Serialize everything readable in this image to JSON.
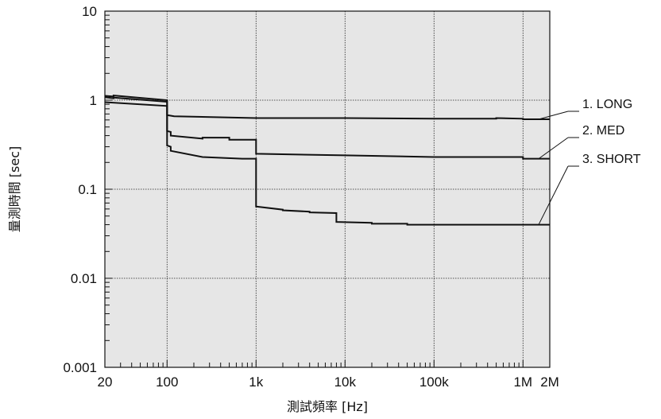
{
  "chart_data": {
    "type": "line",
    "title": "",
    "xlabel": "測試頻率 [Hz]",
    "ylabel": "量測時間 [sec]",
    "xscale": "log",
    "yscale": "log",
    "xlim": [
      20,
      2000000
    ],
    "ylim": [
      0.001,
      10
    ],
    "grid": true,
    "x_ticks": [
      {
        "value": 20,
        "label": "20"
      },
      {
        "value": 100,
        "label": "100"
      },
      {
        "value": 1000,
        "label": "1k"
      },
      {
        "value": 10000,
        "label": "10k"
      },
      {
        "value": 100000,
        "label": "100k"
      },
      {
        "value": 1000000,
        "label": "1M"
      },
      {
        "value": 2000000,
        "label": "2M"
      }
    ],
    "y_ticks": [
      {
        "value": 10,
        "label": "10"
      },
      {
        "value": 1,
        "label": "1"
      },
      {
        "value": 0.1,
        "label": "0.1"
      },
      {
        "value": 0.01,
        "label": "0.01"
      },
      {
        "value": 0.001,
        "label": "0.001"
      }
    ],
    "legend_position": "right",
    "series": [
      {
        "name": "1. LONG",
        "x": [
          20,
          25,
          25,
          100,
          100,
          120,
          1000,
          10000,
          100000,
          500000,
          500000,
          1000000,
          1000000,
          2000000
        ],
        "y": [
          1.12,
          1.1,
          1.13,
          1.0,
          0.68,
          0.66,
          0.63,
          0.63,
          0.62,
          0.62,
          0.63,
          0.62,
          0.61,
          0.61
        ]
      },
      {
        "name": "2. MED",
        "x": [
          20,
          25,
          25,
          100,
          100,
          110,
          110,
          250,
          250,
          500,
          500,
          1000,
          1000,
          10000,
          100000,
          500000,
          500000,
          1000000,
          1000000,
          2000000
        ],
        "y": [
          1.08,
          1.05,
          1.07,
          0.96,
          0.45,
          0.44,
          0.4,
          0.37,
          0.38,
          0.38,
          0.36,
          0.36,
          0.25,
          0.24,
          0.23,
          0.23,
          0.23,
          0.23,
          0.22,
          0.22
        ]
      },
      {
        "name": "3. SHORT",
        "x": [
          20,
          100,
          100,
          110,
          110,
          250,
          700,
          1000,
          1000,
          2000,
          2000,
          4000,
          4000,
          8000,
          8000,
          20000,
          20000,
          50000,
          50000,
          2000000
        ],
        "y": [
          0.95,
          0.86,
          0.31,
          0.3,
          0.27,
          0.23,
          0.22,
          0.22,
          0.064,
          0.059,
          0.058,
          0.056,
          0.055,
          0.054,
          0.043,
          0.042,
          0.041,
          0.041,
          0.04,
          0.04
        ]
      }
    ]
  }
}
